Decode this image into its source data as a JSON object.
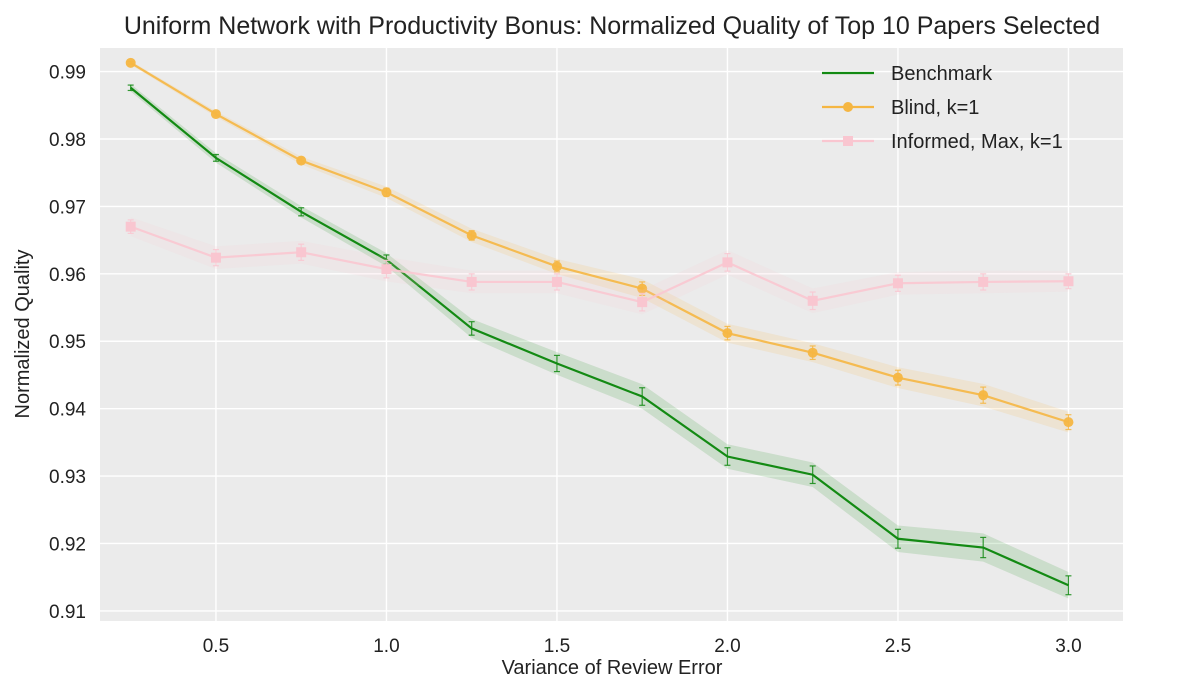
{
  "chart_data": {
    "type": "line",
    "title": "Uniform Network with Productivity Bonus: Normalized Quality of Top 10 Papers Selected",
    "xlabel": "Variance of Review Error",
    "ylabel": "Normalized Quality",
    "xlim": [
      0.16,
      3.16
    ],
    "ylim": [
      0.9085,
      0.9935
    ],
    "grid": true,
    "legend_position": "top-right",
    "x": [
      0.25,
      0.5,
      0.75,
      1.0,
      1.25,
      1.5,
      1.75,
      2.0,
      2.25,
      2.5,
      2.75,
      3.0
    ],
    "x_ticks": [
      0.5,
      1.0,
      1.5,
      2.0,
      2.5,
      3.0
    ],
    "x_tick_labels": [
      "0.5",
      "1.0",
      "1.5",
      "2.0",
      "2.5",
      "3.0"
    ],
    "y_ticks": [
      0.91,
      0.92,
      0.93,
      0.94,
      0.95,
      0.96,
      0.97,
      0.98,
      0.99
    ],
    "y_tick_labels": [
      "0.91",
      "0.92",
      "0.93",
      "0.94",
      "0.95",
      "0.96",
      "0.97",
      "0.98",
      "0.99"
    ],
    "series": [
      {
        "name": "Benchmark",
        "color": "#138a13",
        "marker": "none",
        "values": [
          0.9876,
          0.9772,
          0.9692,
          0.9621,
          0.9519,
          0.9467,
          0.9418,
          0.9329,
          0.9302,
          0.9207,
          0.9194,
          0.9138
        ],
        "errors": [
          0.0004,
          0.0005,
          0.0006,
          0.0007,
          0.001,
          0.0012,
          0.0013,
          0.0013,
          0.0013,
          0.0014,
          0.0015,
          0.0014
        ]
      },
      {
        "name": "Blind, k=1",
        "color": "#f5b642",
        "marker": "circle",
        "values": [
          0.9913,
          0.9837,
          0.9768,
          0.9721,
          0.9657,
          0.9611,
          0.9578,
          0.9512,
          0.9483,
          0.9446,
          0.942,
          0.938
        ],
        "errors": [
          0.0002,
          0.0003,
          0.0004,
          0.0006,
          0.0007,
          0.0008,
          0.001,
          0.001,
          0.001,
          0.0011,
          0.0012,
          0.0011
        ]
      },
      {
        "name": "Informed, Max, k=1",
        "color": "#f9c6d0",
        "marker": "square",
        "values": [
          0.967,
          0.9624,
          0.9632,
          0.9607,
          0.9588,
          0.9588,
          0.9558,
          0.9617,
          0.956,
          0.9586,
          0.9588,
          0.9589
        ],
        "errors": [
          0.001,
          0.0012,
          0.0012,
          0.0013,
          0.0012,
          0.0012,
          0.0013,
          0.0013,
          0.0013,
          0.0012,
          0.0012,
          0.0011
        ]
      }
    ]
  }
}
